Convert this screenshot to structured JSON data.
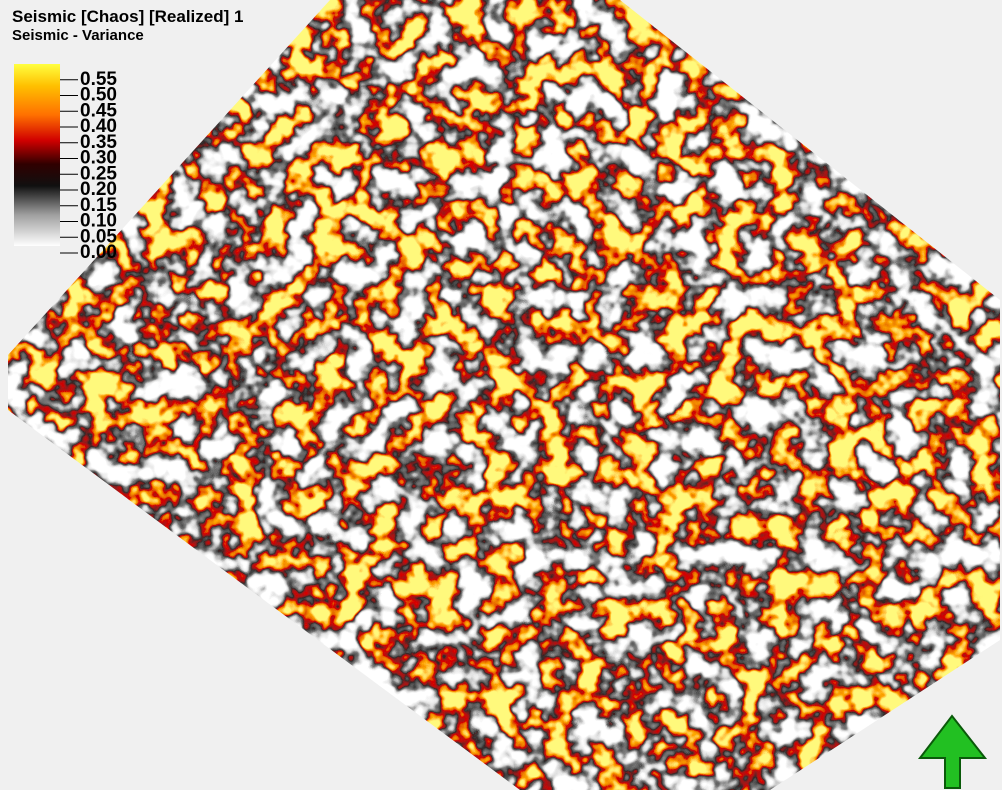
{
  "header": {
    "title": "Seismic [Chaos] [Realized] 1",
    "subtitle": "Seismic - Variance"
  },
  "colorbar": {
    "lim": [
      0,
      0.6
    ],
    "ticks": [
      {
        "value": 0.55,
        "label": "0.55"
      },
      {
        "value": 0.5,
        "label": "0.50"
      },
      {
        "value": 0.45,
        "label": "0.45"
      },
      {
        "value": 0.4,
        "label": "0.40"
      },
      {
        "value": 0.35,
        "label": "0.35"
      },
      {
        "value": 0.3,
        "label": "0.30"
      },
      {
        "value": 0.25,
        "label": "0.25"
      },
      {
        "value": 0.2,
        "label": "0.20"
      },
      {
        "value": 0.15,
        "label": "0.15"
      },
      {
        "value": 0.1,
        "label": "0.10"
      },
      {
        "value": 0.05,
        "label": "0.05"
      },
      {
        "value": 0,
        "label": "0.00"
      }
    ]
  }
}
